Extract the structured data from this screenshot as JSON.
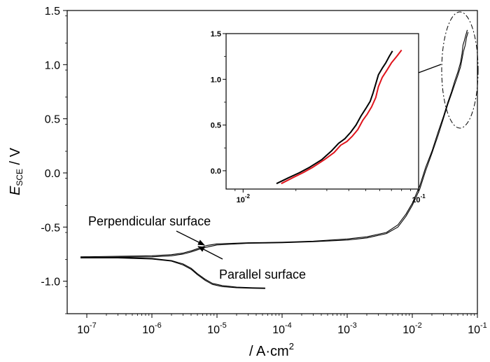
{
  "chart_data": {
    "type": "line",
    "xscale": "log",
    "xlabel": "/ A·cm",
    "xlabel_sup": "2",
    "ylabel_main": "E",
    "ylabel_sub": "SCE",
    "ylabel_unit": " / V",
    "xlim": [
      5e-08,
      0.1
    ],
    "ylim": [
      -1.3,
      1.5
    ],
    "xticks": [
      {
        "v": 1e-07,
        "base": "10",
        "exp": "-7"
      },
      {
        "v": 1e-06,
        "base": "10",
        "exp": "-6"
      },
      {
        "v": 1e-05,
        "base": "10",
        "exp": "-5"
      },
      {
        "v": 0.0001,
        "base": "10",
        "exp": "-4"
      },
      {
        "v": 0.001,
        "base": "10",
        "exp": "-3"
      },
      {
        "v": 0.01,
        "base": "10",
        "exp": "-2"
      },
      {
        "v": 0.1,
        "base": "10",
        "exp": "-1"
      }
    ],
    "yticks": [
      {
        "v": -1.0,
        "label": "-1.0"
      },
      {
        "v": -0.5,
        "label": "-0.5"
      },
      {
        "v": 0.0,
        "label": "0.0"
      },
      {
        "v": 0.5,
        "label": "0.5"
      },
      {
        "v": 1.0,
        "label": "1.0"
      },
      {
        "v": 1.5,
        "label": "1.5"
      }
    ],
    "series": [
      {
        "color": "#000000",
        "points": [
          [
            8e-08,
            -0.78
          ],
          [
            3e-07,
            -0.78
          ],
          [
            1e-06,
            -0.79
          ],
          [
            2e-06,
            -0.81
          ],
          [
            3e-06,
            -0.84
          ],
          [
            4e-06,
            -0.88
          ],
          [
            5e-06,
            -0.93
          ],
          [
            6.5e-06,
            -0.98
          ],
          [
            8.5e-06,
            -1.02
          ],
          [
            1.2e-05,
            -1.04
          ],
          [
            2e-05,
            -1.055
          ],
          [
            3.5e-05,
            -1.06
          ],
          [
            5.5e-05,
            -1.063
          ]
        ]
      },
      {
        "color": "#000000",
        "points": [
          [
            8e-08,
            -0.785
          ],
          [
            3e-07,
            -0.785
          ],
          [
            1e-06,
            -0.795
          ],
          [
            2e-06,
            -0.815
          ],
          [
            3e-06,
            -0.85
          ],
          [
            4e-06,
            -0.89
          ],
          [
            5e-06,
            -0.94
          ],
          [
            6.5e-06,
            -0.99
          ],
          [
            8.5e-06,
            -1.03
          ],
          [
            1.2e-05,
            -1.05
          ],
          [
            2e-05,
            -1.06
          ],
          [
            3.5e-05,
            -1.065
          ],
          [
            5.5e-05,
            -1.068
          ]
        ]
      },
      {
        "color": "#000000",
        "points": [
          [
            8e-08,
            -0.775
          ],
          [
            1e-06,
            -0.765
          ],
          [
            2e-06,
            -0.755
          ],
          [
            3e-06,
            -0.74
          ],
          [
            4e-06,
            -0.72
          ],
          [
            5e-06,
            -0.7
          ],
          [
            7e-06,
            -0.67
          ],
          [
            1e-05,
            -0.655
          ],
          [
            3e-05,
            -0.645
          ],
          [
            0.0001,
            -0.64
          ],
          [
            0.0003,
            -0.63
          ],
          [
            0.001,
            -0.61
          ],
          [
            0.002,
            -0.59
          ],
          [
            0.004,
            -0.55
          ],
          [
            0.006,
            -0.48
          ],
          [
            0.008,
            -0.38
          ],
          [
            0.01,
            -0.28
          ],
          [
            0.013,
            -0.12
          ],
          [
            0.016,
            0.05
          ],
          [
            0.02,
            0.2
          ],
          [
            0.025,
            0.38
          ],
          [
            0.03,
            0.52
          ],
          [
            0.035,
            0.65
          ],
          [
            0.04,
            0.75
          ],
          [
            0.045,
            0.85
          ],
          [
            0.05,
            0.93
          ],
          [
            0.055,
            1.02
          ],
          [
            0.058,
            1.1
          ],
          [
            0.06,
            1.18
          ],
          [
            0.063,
            1.22
          ],
          [
            0.067,
            1.28
          ],
          [
            0.07,
            1.32
          ]
        ]
      },
      {
        "color": "#000000",
        "points": [
          [
            8e-08,
            -0.78
          ],
          [
            1e-06,
            -0.775
          ],
          [
            2e-06,
            -0.765
          ],
          [
            3e-06,
            -0.75
          ],
          [
            4e-06,
            -0.73
          ],
          [
            5e-06,
            -0.71
          ],
          [
            7e-06,
            -0.685
          ],
          [
            1e-05,
            -0.665
          ],
          [
            3e-05,
            -0.65
          ],
          [
            0.0001,
            -0.645
          ],
          [
            0.0003,
            -0.635
          ],
          [
            0.001,
            -0.62
          ],
          [
            0.002,
            -0.6
          ],
          [
            0.004,
            -0.56
          ],
          [
            0.006,
            -0.5
          ],
          [
            0.008,
            -0.4
          ],
          [
            0.01,
            -0.3
          ],
          [
            0.013,
            -0.15
          ],
          [
            0.016,
            0.02
          ],
          [
            0.02,
            0.18
          ],
          [
            0.025,
            0.35
          ],
          [
            0.03,
            0.5
          ],
          [
            0.035,
            0.63
          ],
          [
            0.04,
            0.73
          ],
          [
            0.045,
            0.82
          ],
          [
            0.05,
            0.9
          ],
          [
            0.055,
            0.98
          ],
          [
            0.058,
            1.05
          ],
          [
            0.061,
            1.12
          ],
          [
            0.065,
            1.18
          ],
          [
            0.068,
            1.25
          ],
          [
            0.072,
            1.3
          ]
        ]
      }
    ],
    "annotations": [
      {
        "text": "Perpendicular surface",
        "point": [
          5.5e-06,
          -0.72
        ]
      },
      {
        "text": "Parallel surface",
        "point": [
          5e-06,
          -0.68
        ]
      }
    ],
    "inset": {
      "xscale": "log",
      "xlim": [
        0.008,
        0.1
      ],
      "ylim": [
        -0.2,
        1.5
      ],
      "xticks": [
        {
          "v": 0.01,
          "base": "10",
          "exp": "-2"
        },
        {
          "v": 0.1,
          "base": "10",
          "exp": "-1"
        }
      ],
      "yticks": [
        {
          "v": 0.0,
          "label": "0.0"
        },
        {
          "v": 0.5,
          "label": "0.5"
        },
        {
          "v": 1.0,
          "label": "1.0"
        },
        {
          "v": 1.5,
          "label": "1.5"
        }
      ],
      "series": [
        {
          "color": "#000000",
          "points": [
            [
              0.0155,
              -0.14
            ],
            [
              0.018,
              -0.08
            ],
            [
              0.021,
              -0.02
            ],
            [
              0.024,
              0.04
            ],
            [
              0.028,
              0.12
            ],
            [
              0.032,
              0.22
            ],
            [
              0.035,
              0.3
            ],
            [
              0.038,
              0.35
            ],
            [
              0.041,
              0.42
            ],
            [
              0.044,
              0.5
            ],
            [
              0.047,
              0.6
            ],
            [
              0.05,
              0.68
            ],
            [
              0.053,
              0.76
            ],
            [
              0.055,
              0.85
            ],
            [
              0.057,
              0.95
            ],
            [
              0.059,
              1.05
            ],
            [
              0.062,
              1.12
            ],
            [
              0.065,
              1.18
            ],
            [
              0.068,
              1.25
            ],
            [
              0.071,
              1.31
            ]
          ]
        },
        {
          "color": "#e0141c",
          "points": [
            [
              0.0165,
              -0.14
            ],
            [
              0.019,
              -0.08
            ],
            [
              0.022,
              -0.02
            ],
            [
              0.025,
              0.04
            ],
            [
              0.029,
              0.12
            ],
            [
              0.033,
              0.2
            ],
            [
              0.036,
              0.28
            ],
            [
              0.039,
              0.32
            ],
            [
              0.042,
              0.38
            ],
            [
              0.045,
              0.45
            ],
            [
              0.048,
              0.55
            ],
            [
              0.051,
              0.62
            ],
            [
              0.054,
              0.7
            ],
            [
              0.057,
              0.8
            ],
            [
              0.059,
              0.92
            ],
            [
              0.062,
              1.02
            ],
            [
              0.066,
              1.1
            ],
            [
              0.07,
              1.18
            ],
            [
              0.075,
              1.25
            ],
            [
              0.08,
              1.32
            ]
          ]
        }
      ]
    }
  }
}
